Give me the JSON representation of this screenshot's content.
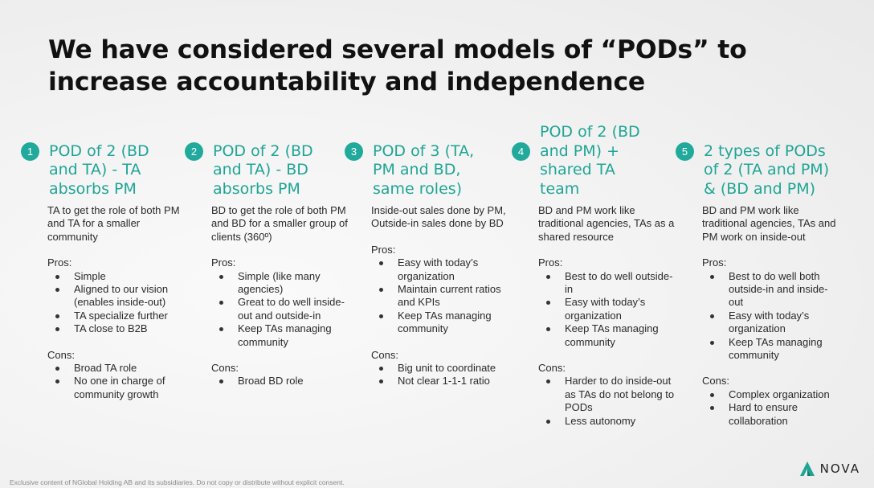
{
  "title": "We have considered several models of “PODs” to increase accountability and independence",
  "pods": [
    {
      "number": "1",
      "title_lines": [
        "POD of 2 (BD",
        "and TA) - TA",
        "absorbs PM"
      ],
      "description": "TA to get the role of both PM and TA for a smaller community",
      "pros_label": "Pros:",
      "pros": [
        "Simple",
        "Aligned to our vision (enables inside-out)",
        "TA specialize further",
        "TA close to B2B"
      ],
      "cons_label": "Cons:",
      "cons": [
        "Broad TA role",
        "No one in charge of community growth"
      ]
    },
    {
      "number": "2",
      "title_lines": [
        "POD of 2 (BD",
        "and TA) - BD",
        "absorbs PM"
      ],
      "description": "BD to get the role of both PM and BD for a smaller group of clients (360º)",
      "pros_label": "Pros:",
      "pros": [
        "Simple (like many agencies)",
        "Great to do well inside-out and outside-in",
        "Keep TAs managing community"
      ],
      "cons_label": "Cons:",
      "cons": [
        "Broad BD role"
      ]
    },
    {
      "number": "3",
      "title_lines": [
        "POD of 3 (TA,",
        "PM and BD,",
        "same roles)"
      ],
      "description": "Inside-out sales done by PM, Outside-in sales done by BD",
      "pros_label": "Pros:",
      "pros": [
        "Easy with today’s organization",
        "Maintain current ratios and KPIs",
        "Keep TAs managing community"
      ],
      "cons_label": "Cons:",
      "cons": [
        "Big unit to coordinate",
        "Not clear 1-1-1 ratio"
      ]
    },
    {
      "number": "4",
      "title_lines": [
        "POD of 2 (BD",
        "and PM) +",
        "shared TA",
        "team"
      ],
      "description": "BD and PM work like traditional agencies, TAs as a shared resource",
      "pros_label": "Pros:",
      "pros": [
        "Best to do well outside-in",
        "Easy with today’s organization",
        "Keep TAs managing community"
      ],
      "cons_label": "Cons:",
      "cons": [
        "Harder to do inside-out as TAs do not belong to PODs",
        "Less autonomy"
      ]
    },
    {
      "number": "5",
      "title_lines": [
        "2 types of PODs",
        "of 2 (TA and PM)",
        "& (BD and PM)"
      ],
      "description": "BD and PM work like traditional agencies, TAs and PM work on inside-out",
      "pros_label": "Pros:",
      "pros": [
        "Best to do well both outside-in and inside-out",
        "Easy with today’s organization",
        "Keep TAs managing community"
      ],
      "cons_label": "Cons:",
      "cons": [
        "Complex organization",
        "Hard to ensure collaboration"
      ]
    }
  ],
  "footer": "Exclusive content of NGlobal Holding AB and its subsidiaries. Do not copy or distribute without explicit consent.",
  "logo_text": "NOVA",
  "colors": {
    "accent": "#21a99c",
    "title": "#111111",
    "text": "#2a2a2a"
  }
}
